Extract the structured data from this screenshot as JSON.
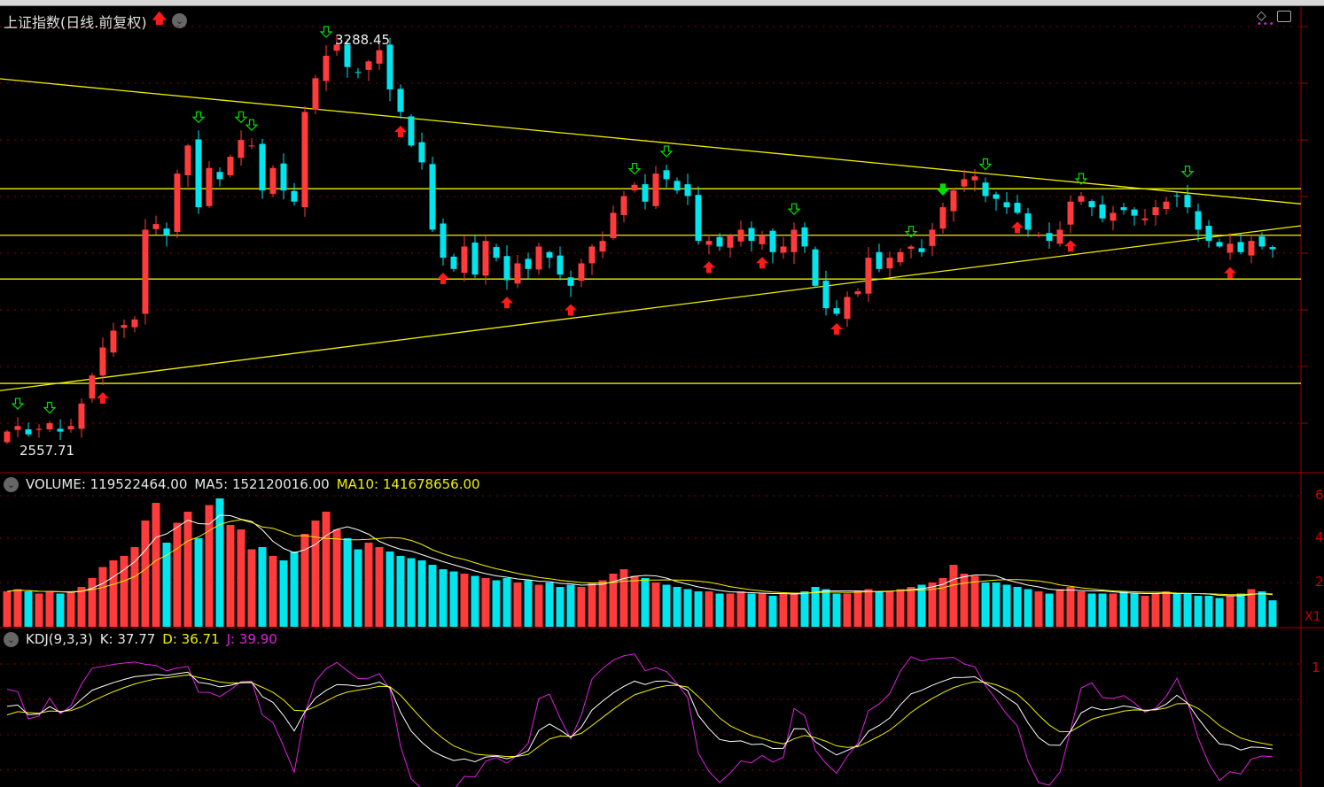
{
  "header": {
    "title": "上证指数(日线.前复权)",
    "title_up_icon": "red-up-arrow-icon",
    "dropdown_icon": "chevron-down-icon"
  },
  "toolbar": {
    "diamond_icon": "diamond-icon",
    "panel_icon": "panel-toggle-icon"
  },
  "main_chart": {
    "high_label": "3288.45",
    "low_label": "2557.71"
  },
  "volume_panel": {
    "volume_label": "VOLUME: 119522464.00",
    "ma5_label": "MA5: 152120016.00",
    "ma10_label": "MA10: 141678656.00",
    "axis_ticks": [
      "6",
      "4",
      "2"
    ],
    "unit_label": "X1"
  },
  "kdj_panel": {
    "name_label": "KDJ(9,3,3)",
    "k_label": "K: 37.77",
    "d_label": "D: 36.71",
    "j_label": "J: 39.90",
    "axis_tick": "1"
  },
  "colors": {
    "up": "#ff3b3b",
    "down": "#00e5ee",
    "line_yellow": "#f0f000",
    "grid": "#8b0000",
    "k": "#ffffff",
    "d": "#f0f000",
    "j": "#e020e0"
  },
  "chart_data": {
    "type": "candlestick",
    "price_range": [
      2557.71,
      3288.45
    ],
    "closes": [
      2590,
      2600,
      2585,
      2595,
      2605,
      2590,
      2600,
      2640,
      2690,
      2740,
      2770,
      2780,
      2790,
      2950,
      2960,
      2940,
      3050,
      3100,
      2990,
      3060,
      3040,
      3080,
      3110,
      3100,
      3020,
      3060,
      3020,
      3000,
      3160,
      3220,
      3260,
      3280,
      3240,
      3230,
      3250,
      3270,
      3200,
      3160,
      3100,
      3070,
      2950,
      2900,
      2880,
      2920,
      2870,
      2930,
      2900,
      2860,
      2890,
      2880,
      2920,
      2900,
      2870,
      2850,
      2890,
      2920,
      2930,
      2980,
      3010,
      3030,
      3000,
      3050,
      3040,
      3020,
      3010,
      2930,
      2930,
      2920,
      2940,
      2950,
      2930,
      2940,
      2910,
      2920,
      2950,
      2920,
      2850,
      2810,
      2800,
      2830,
      2840,
      2900,
      2880,
      2900,
      2910,
      2920,
      2910,
      2950,
      2990,
      3020,
      3040,
      3045,
      3010,
      3005,
      2990,
      2980,
      2950,
      2940,
      2930,
      2950,
      3000,
      3010,
      2990,
      2970,
      2980,
      2985,
      2975,
      2970,
      2990,
      3000,
      3010,
      2990,
      2950,
      2930,
      2920,
      2925,
      2910,
      2930,
      2920,
      2915
    ],
    "volumes_1e8": [
      1.6,
      1.7,
      1.6,
      1.5,
      1.6,
      1.5,
      1.6,
      1.8,
      2.2,
      2.7,
      3.0,
      3.2,
      3.6,
      4.8,
      5.6,
      3.8,
      4.7,
      5.2,
      4.0,
      5.5,
      5.8,
      4.6,
      4.4,
      3.5,
      3.6,
      3.2,
      3.0,
      3.4,
      4.2,
      4.8,
      5.2,
      4.4,
      4.0,
      3.5,
      3.8,
      3.6,
      3.4,
      3.2,
      3.1,
      3.0,
      2.8,
      2.6,
      2.5,
      2.4,
      2.3,
      2.2,
      2.1,
      2.2,
      2.0,
      2.1,
      1.9,
      2.0,
      1.8,
      1.9,
      1.8,
      2.0,
      2.1,
      2.4,
      2.6,
      2.3,
      2.2,
      2.0,
      1.9,
      1.8,
      1.7,
      1.6,
      1.6,
      1.5,
      1.5,
      1.6,
      1.5,
      1.5,
      1.4,
      1.5,
      1.5,
      1.6,
      1.8,
      1.7,
      1.5,
      1.5,
      1.6,
      1.7,
      1.6,
      1.6,
      1.7,
      1.8,
      1.9,
      2.0,
      2.2,
      2.8,
      2.4,
      2.3,
      2.0,
      2.0,
      1.9,
      1.8,
      1.7,
      1.6,
      1.5,
      1.7,
      1.8,
      1.6,
      1.5,
      1.5,
      1.5,
      1.6,
      1.5,
      1.4,
      1.5,
      1.6,
      1.5,
      1.5,
      1.4,
      1.4,
      1.3,
      1.4,
      1.5,
      1.7,
      1.6,
      1.195
    ],
    "horizontal_levels": [
      3023,
      2940,
      2862,
      2676
    ],
    "trendlines": [
      {
        "start": 3219,
        "end": 2996
      },
      {
        "start": 2663,
        "end": 2957
      }
    ],
    "buy_signals": [
      9,
      37,
      41,
      47,
      53,
      66,
      71,
      78,
      95,
      100,
      115
    ],
    "sell_signals": [
      1,
      4,
      18,
      22,
      23,
      30,
      59,
      62,
      74,
      85,
      88,
      92,
      101,
      111
    ]
  }
}
